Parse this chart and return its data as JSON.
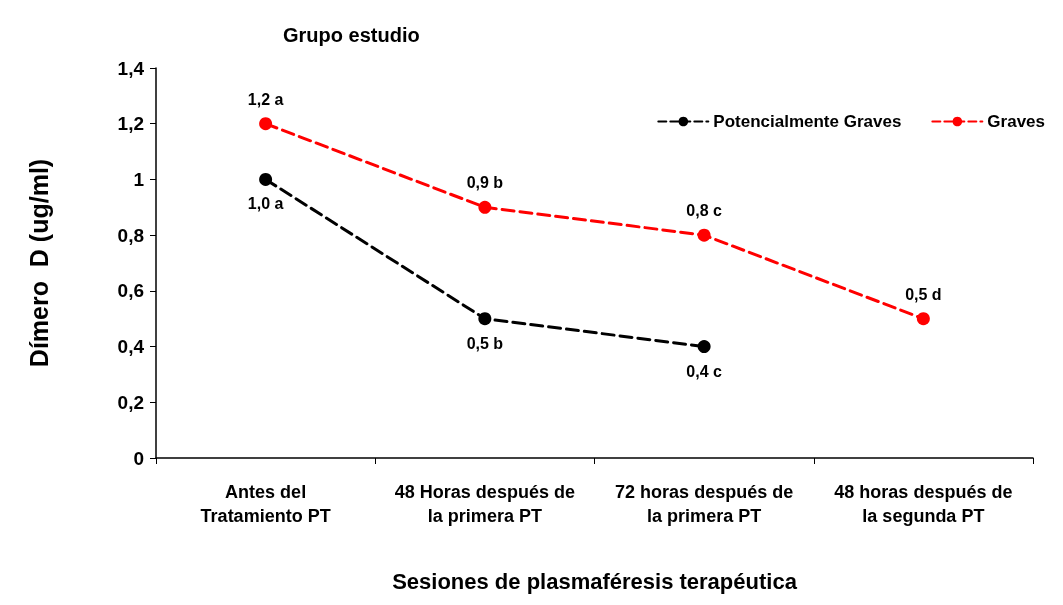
{
  "chart_data": {
    "type": "line",
    "title": "Grupo estudio",
    "xlabel": "Sesiones de plasmaféresis terapéutica",
    "ylabel": "Dímero  D (ug/ml)",
    "categories": [
      "Antes del\nTratamiento PT",
      "48 Horas después de\nla primera PT",
      "72 horas después de\nla primera PT",
      "48 horas después de\nla segunda PT"
    ],
    "series": [
      {
        "name": "Potencialmente Graves",
        "color": "#000000",
        "values": [
          1.0,
          0.5,
          0.4,
          null
        ],
        "value_labels": [
          "1,0 a",
          "0,5 b",
          "0,4 c",
          null
        ]
      },
      {
        "name": "Graves",
        "color": "#ff0000",
        "values": [
          1.2,
          0.9,
          0.8,
          0.5
        ],
        "value_labels": [
          "1,2 a",
          "0,9 b",
          "0,8 c",
          "0,5 d"
        ]
      }
    ],
    "ylim": [
      0,
      1.4
    ],
    "yticks": [
      0,
      {
        "value": 0.2,
        "label": "0,2"
      },
      {
        "value": 0.4,
        "label": "0,4"
      },
      {
        "value": 0.6,
        "label": "0,6"
      },
      {
        "value": 0.8,
        "label": "0,8"
      },
      1,
      {
        "value": 1.2,
        "label": "1,2"
      },
      {
        "value": 1.4,
        "label": "1,4"
      }
    ],
    "grid": false,
    "legend": "top right",
    "marker": "circle",
    "line_style": "dashed"
  }
}
